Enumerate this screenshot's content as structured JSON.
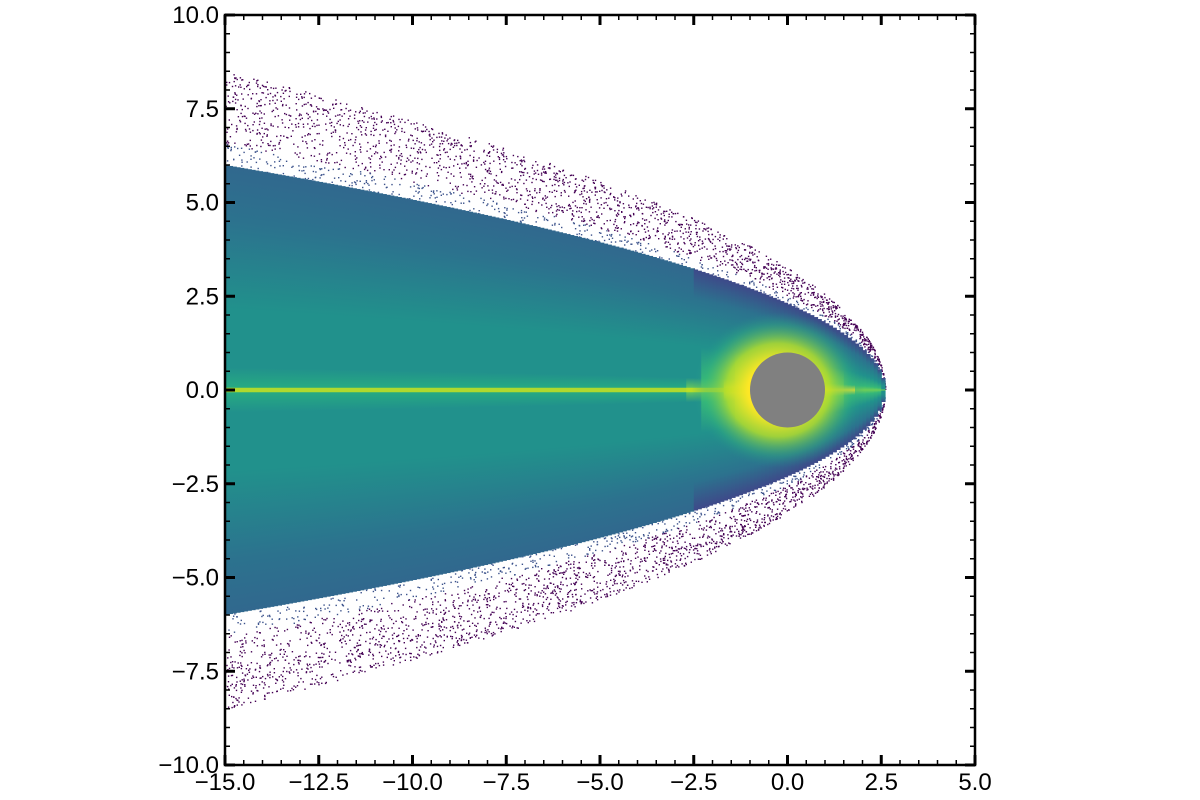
{
  "chart_data": {
    "type": "heatmap",
    "title": "",
    "xlabel": "",
    "ylabel": "",
    "xlim": [
      -15,
      5
    ],
    "ylim": [
      -10,
      10
    ],
    "x_ticks": [
      -15.0,
      -12.5,
      -10.0,
      -7.5,
      -5.0,
      -2.5,
      0.0,
      2.5,
      5.0
    ],
    "y_ticks": [
      -10.0,
      -7.5,
      -5.0,
      -2.5,
      0.0,
      2.5,
      5.0,
      7.5,
      10.0
    ],
    "x_tick_labels": [
      "−15.0",
      "−12.5",
      "−10.0",
      "−7.5",
      "−5.0",
      "−2.5",
      "0.0",
      "2.5",
      "5.0"
    ],
    "y_tick_labels": [
      "−10.0",
      "−7.5",
      "−5.0",
      "−2.5",
      "0.0",
      "2.5",
      "5.0",
      "7.5",
      "10.0"
    ],
    "grid": false,
    "colormap": "viridis",
    "colors": {
      "obstacle": "#808080",
      "low": "#440154",
      "mid": "#21918c",
      "high": "#fde725"
    },
    "obstacle": {
      "shape": "circle",
      "center": [
        0.0,
        0.0
      ],
      "radius": 1.0
    },
    "plume": {
      "apex_x": 2.6,
      "inner_half_width_at_xmin": 6.0,
      "outer_half_width_at_xmin": 8.5,
      "centerline_y": 0.0
    }
  }
}
